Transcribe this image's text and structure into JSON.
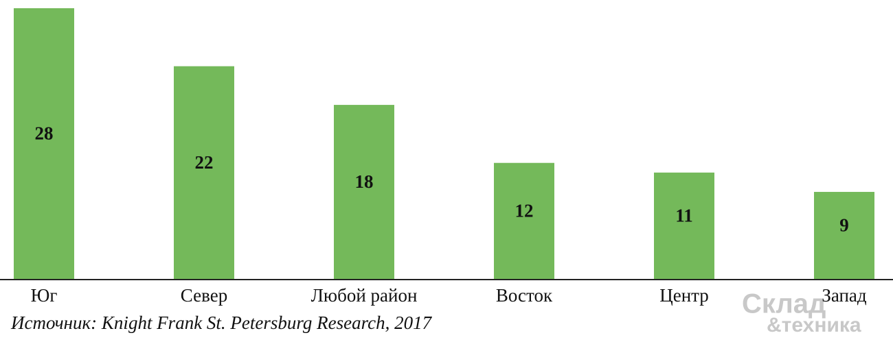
{
  "chart_data": {
    "type": "bar",
    "categories": [
      "Юг",
      "Север",
      "Любой район",
      "Восток",
      "Центр",
      "Запад"
    ],
    "values": [
      28,
      22,
      18,
      12,
      11,
      9
    ],
    "color": "#74b95a",
    "source": "Источник: Knight Frank St. Petersburg Research, 2017"
  },
  "watermark": [
    "Склад",
    "&техника"
  ]
}
